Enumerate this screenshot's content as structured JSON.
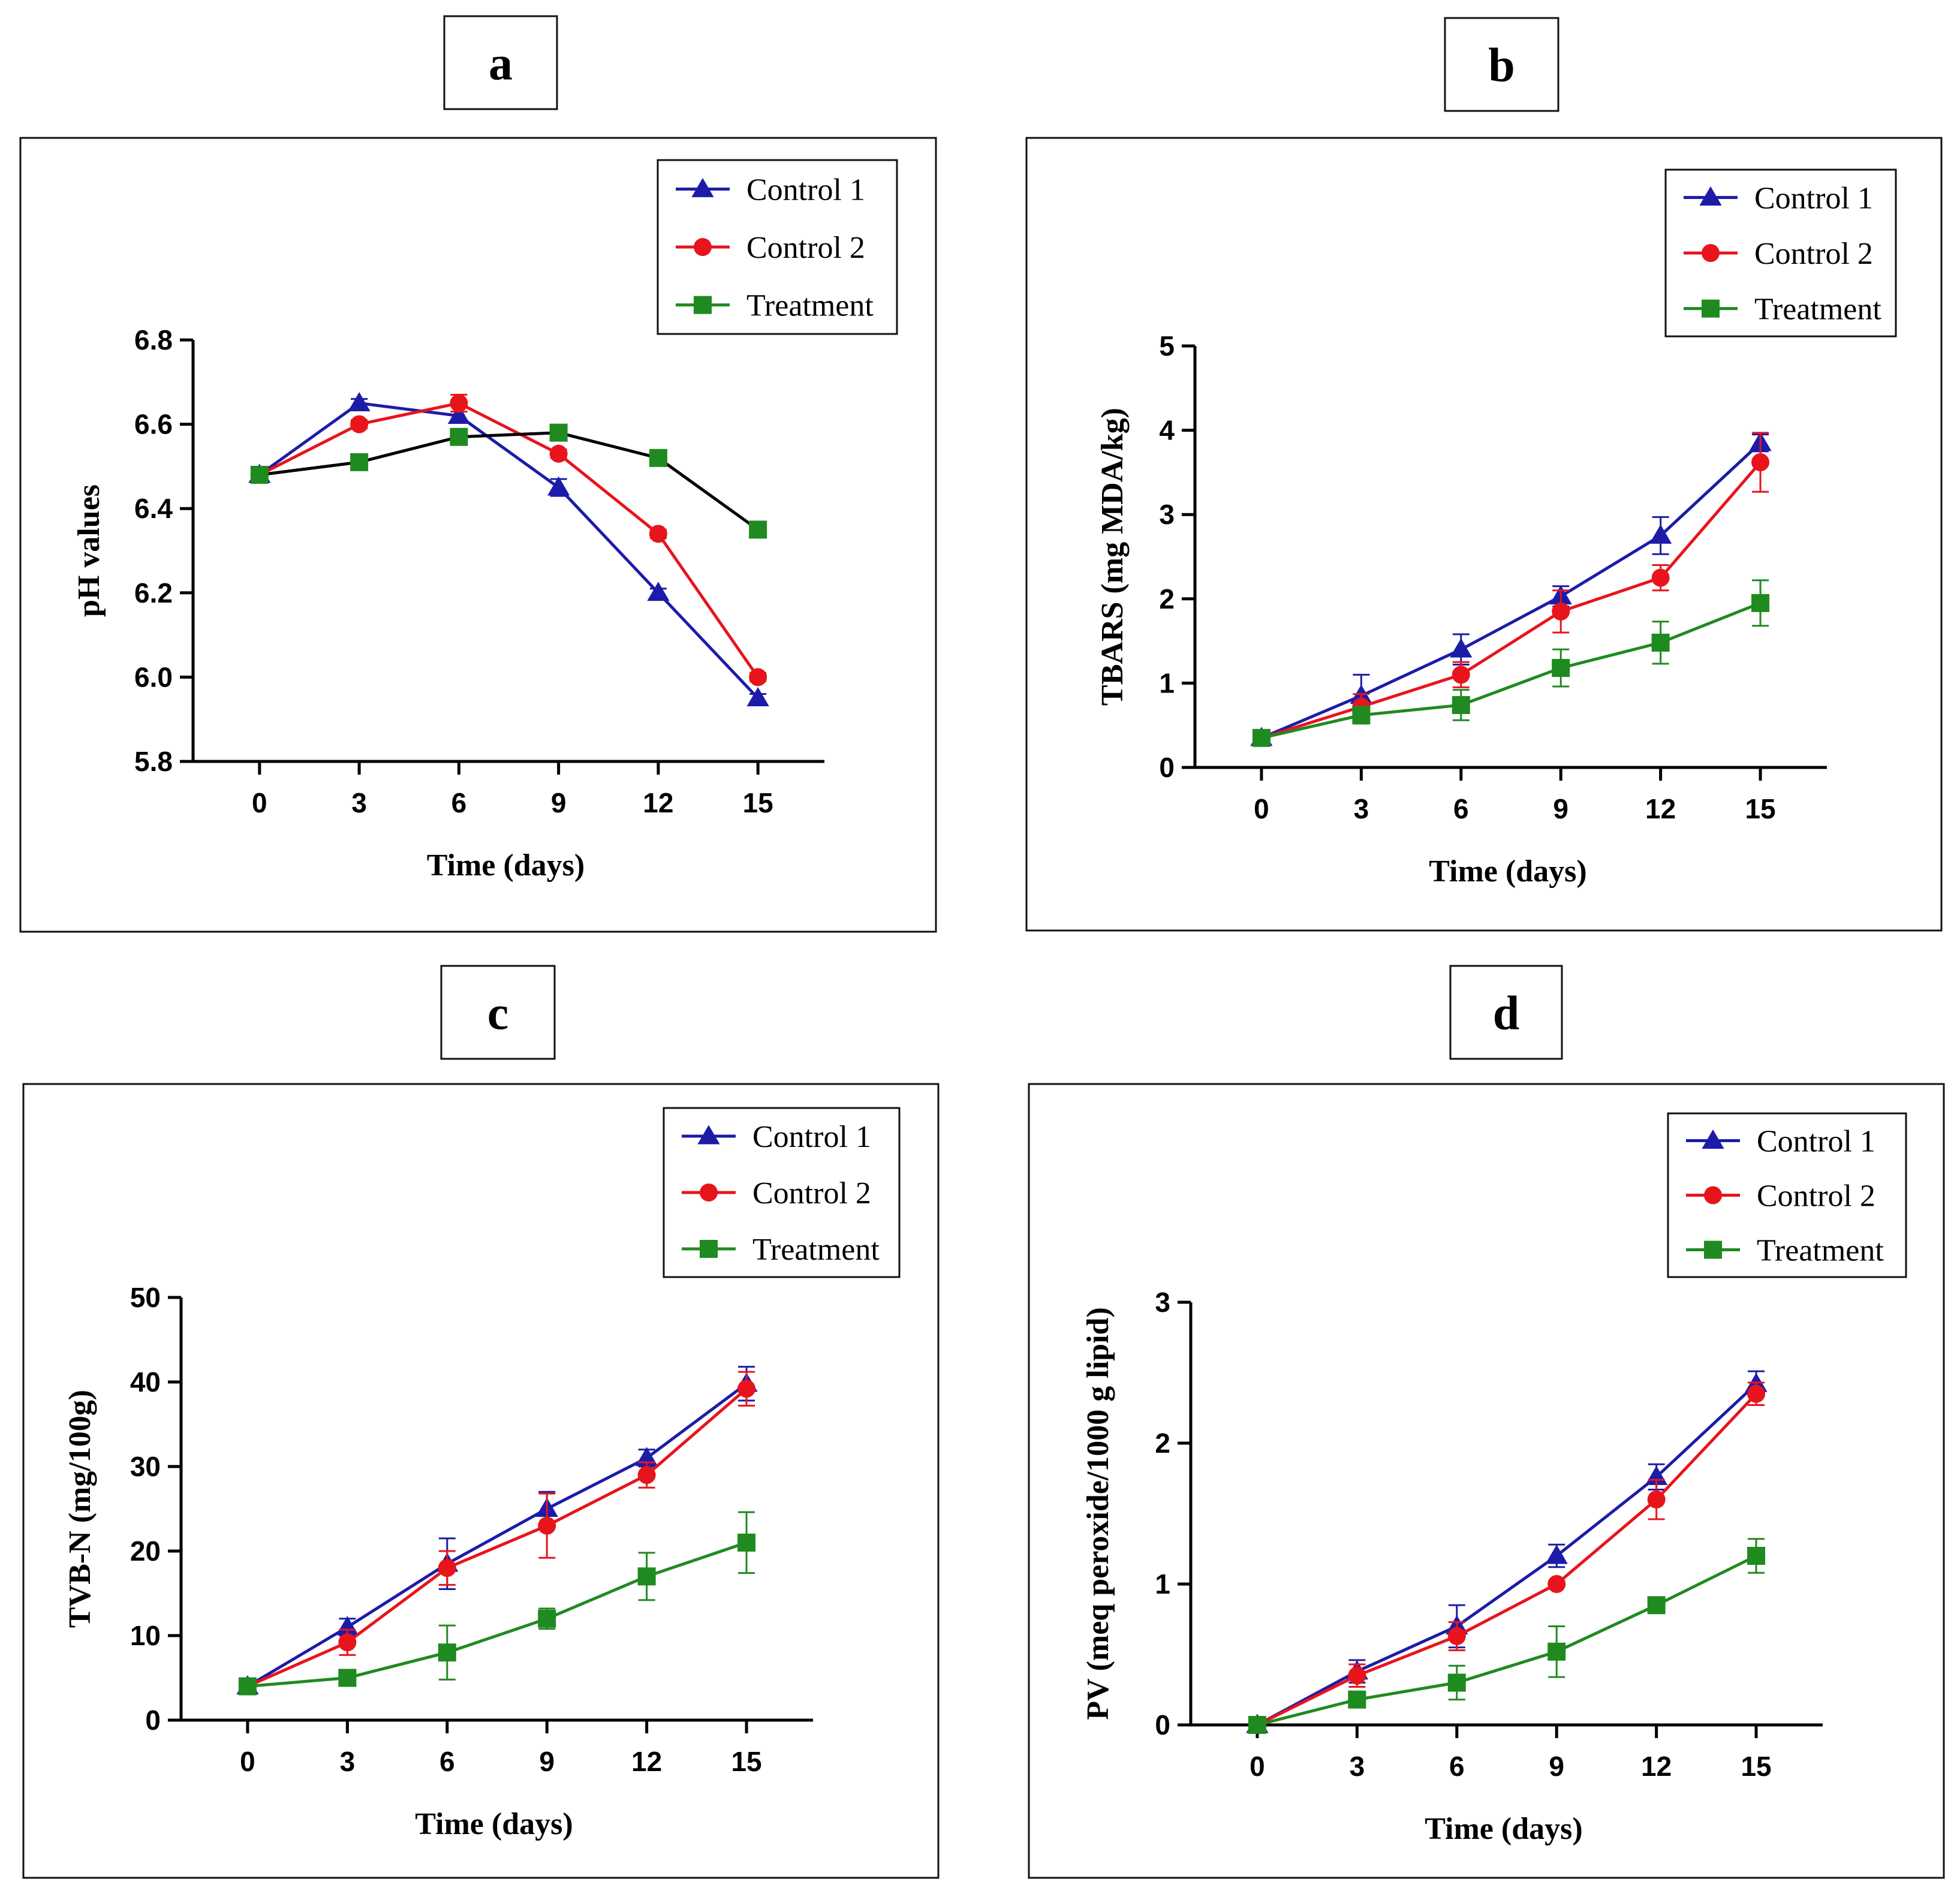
{
  "series_meta": [
    {
      "name": "Control 1",
      "color": "#1c1ca8",
      "marker": "triangle"
    },
    {
      "name": "Control 2",
      "color": "#e8141c",
      "marker": "circle"
    },
    {
      "name": "Treatment",
      "color": "#1f8a1f",
      "marker": "square"
    }
  ],
  "chart_data": [
    {
      "panel": "a",
      "type": "line",
      "title": "",
      "xlabel": "Time (days)",
      "ylabel": "pH values",
      "x": [
        0,
        3,
        6,
        9,
        12,
        15
      ],
      "xlim": [
        -2,
        17
      ],
      "ylim": [
        5.8,
        6.8
      ],
      "yticks": [
        5.8,
        6.0,
        6.2,
        6.4,
        6.6,
        6.8
      ],
      "ytick_labels": [
        "5.8",
        "6.0",
        "6.2",
        "6.4",
        "6.6",
        "6.8"
      ],
      "legend": "top-right",
      "treatment_line_color": "#000000",
      "series": [
        {
          "name": "Control 1",
          "values": [
            6.48,
            6.65,
            6.62,
            6.45,
            6.2,
            5.95
          ],
          "errors": [
            0.005,
            0.01,
            0.01,
            0.02,
            0.01,
            0.01
          ]
        },
        {
          "name": "Control 2",
          "values": [
            6.48,
            6.6,
            6.65,
            6.53,
            6.34,
            6.0
          ],
          "errors": [
            0.005,
            0.01,
            0.02,
            0.01,
            0.01,
            0.01
          ]
        },
        {
          "name": "Treatment",
          "values": [
            6.48,
            6.51,
            6.57,
            6.58,
            6.52,
            6.35
          ],
          "errors": [
            0.005,
            0.01,
            0.01,
            0.01,
            0.01,
            0.01
          ]
        }
      ]
    },
    {
      "panel": "b",
      "type": "line",
      "title": "",
      "xlabel": "Time (days)",
      "ylabel": "TBARS (mg MDA/kg)",
      "x": [
        0,
        3,
        6,
        9,
        12,
        15
      ],
      "xlim": [
        -2,
        17
      ],
      "ylim": [
        0,
        5
      ],
      "yticks": [
        0,
        1,
        2,
        3,
        4,
        5
      ],
      "ytick_labels": [
        "0",
        "1",
        "2",
        "3",
        "4",
        "5"
      ],
      "legend": "top-right",
      "series": [
        {
          "name": "Control 1",
          "values": [
            0.35,
            0.85,
            1.4,
            2.03,
            2.75,
            3.85
          ],
          "errors": [
            0.03,
            0.25,
            0.18,
            0.12,
            0.22,
            0.1
          ]
        },
        {
          "name": "Control 2",
          "values": [
            0.35,
            0.72,
            1.1,
            1.85,
            2.25,
            3.62
          ],
          "errors": [
            0.03,
            0.15,
            0.15,
            0.25,
            0.15,
            0.35
          ]
        },
        {
          "name": "Treatment",
          "values": [
            0.35,
            0.62,
            0.74,
            1.18,
            1.48,
            1.95
          ],
          "errors": [
            0.03,
            0.1,
            0.18,
            0.22,
            0.25,
            0.27
          ]
        }
      ]
    },
    {
      "panel": "c",
      "type": "line",
      "title": "",
      "xlabel": "Time (days)",
      "ylabel": "TVB-N (mg/100g)",
      "x": [
        0,
        3,
        6,
        9,
        12,
        15
      ],
      "xlim": [
        -2,
        17
      ],
      "ylim": [
        0,
        50
      ],
      "yticks": [
        0,
        10,
        20,
        30,
        40,
        50
      ],
      "ytick_labels": [
        "0",
        "10",
        "20",
        "30",
        "40",
        "50"
      ],
      "legend": "top-right",
      "series": [
        {
          "name": "Control 1",
          "values": [
            4.0,
            11.0,
            18.5,
            25.0,
            31.0,
            39.8
          ],
          "errors": [
            0.3,
            1.0,
            3.0,
            2.0,
            1.0,
            2.0
          ]
        },
        {
          "name": "Control 2",
          "values": [
            4.0,
            9.2,
            18.0,
            23.0,
            29.0,
            39.2
          ],
          "errors": [
            0.3,
            1.5,
            2.0,
            3.8,
            1.5,
            2.0
          ]
        },
        {
          "name": "Treatment",
          "values": [
            4.0,
            5.0,
            8.0,
            12.0,
            17.0,
            21.0
          ],
          "errors": [
            0.3,
            0.5,
            3.2,
            1.2,
            2.8,
            3.6
          ]
        }
      ]
    },
    {
      "panel": "d",
      "type": "line",
      "title": "",
      "xlabel": "Time (days)",
      "ylabel": "PV (meq peroxide/1000 g lipid)",
      "x": [
        0,
        3,
        6,
        9,
        12,
        15
      ],
      "xlim": [
        -2,
        17
      ],
      "ylim": [
        0,
        3
      ],
      "yticks": [
        0,
        1,
        2,
        3
      ],
      "ytick_labels": [
        "0",
        "1",
        "2",
        "3"
      ],
      "legend": "top-right",
      "series": [
        {
          "name": "Control 1",
          "values": [
            0.0,
            0.38,
            0.7,
            1.2,
            1.76,
            2.42
          ],
          "errors": [
            0.01,
            0.08,
            0.15,
            0.08,
            0.09,
            0.09
          ]
        },
        {
          "name": "Control 2",
          "values": [
            0.0,
            0.35,
            0.63,
            1.0,
            1.6,
            2.35
          ],
          "errors": [
            0.01,
            0.08,
            0.1,
            0.02,
            0.14,
            0.08
          ]
        },
        {
          "name": "Treatment",
          "values": [
            0.0,
            0.18,
            0.3,
            0.52,
            0.85,
            1.2
          ],
          "errors": [
            0.01,
            0.05,
            0.12,
            0.18,
            0.03,
            0.12
          ]
        }
      ]
    }
  ]
}
